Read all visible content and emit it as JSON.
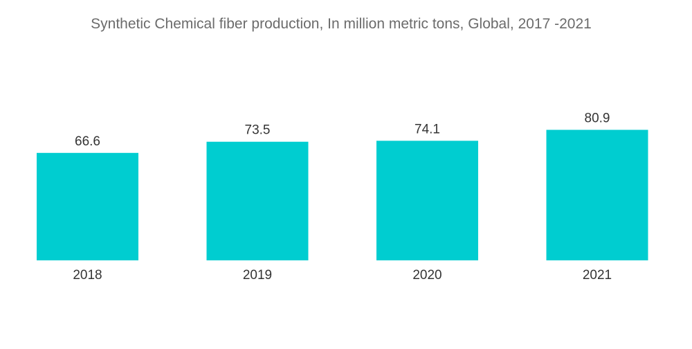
{
  "chart_data": {
    "type": "bar",
    "title": "Synthetic Chemical fiber production, In million metric tons, Global, 2017 -2021",
    "xlabel": "",
    "ylabel": "",
    "categories": [
      "2018",
      "2019",
      "2020",
      "2021"
    ],
    "values": [
      66.6,
      73.5,
      74.1,
      80.9
    ],
    "value_labels": [
      "66.6",
      "73.5",
      "74.1",
      "80.9"
    ],
    "ylim": [
      0,
      100
    ],
    "grid": false,
    "legend": "none",
    "bar_color": "#00cdd0"
  }
}
